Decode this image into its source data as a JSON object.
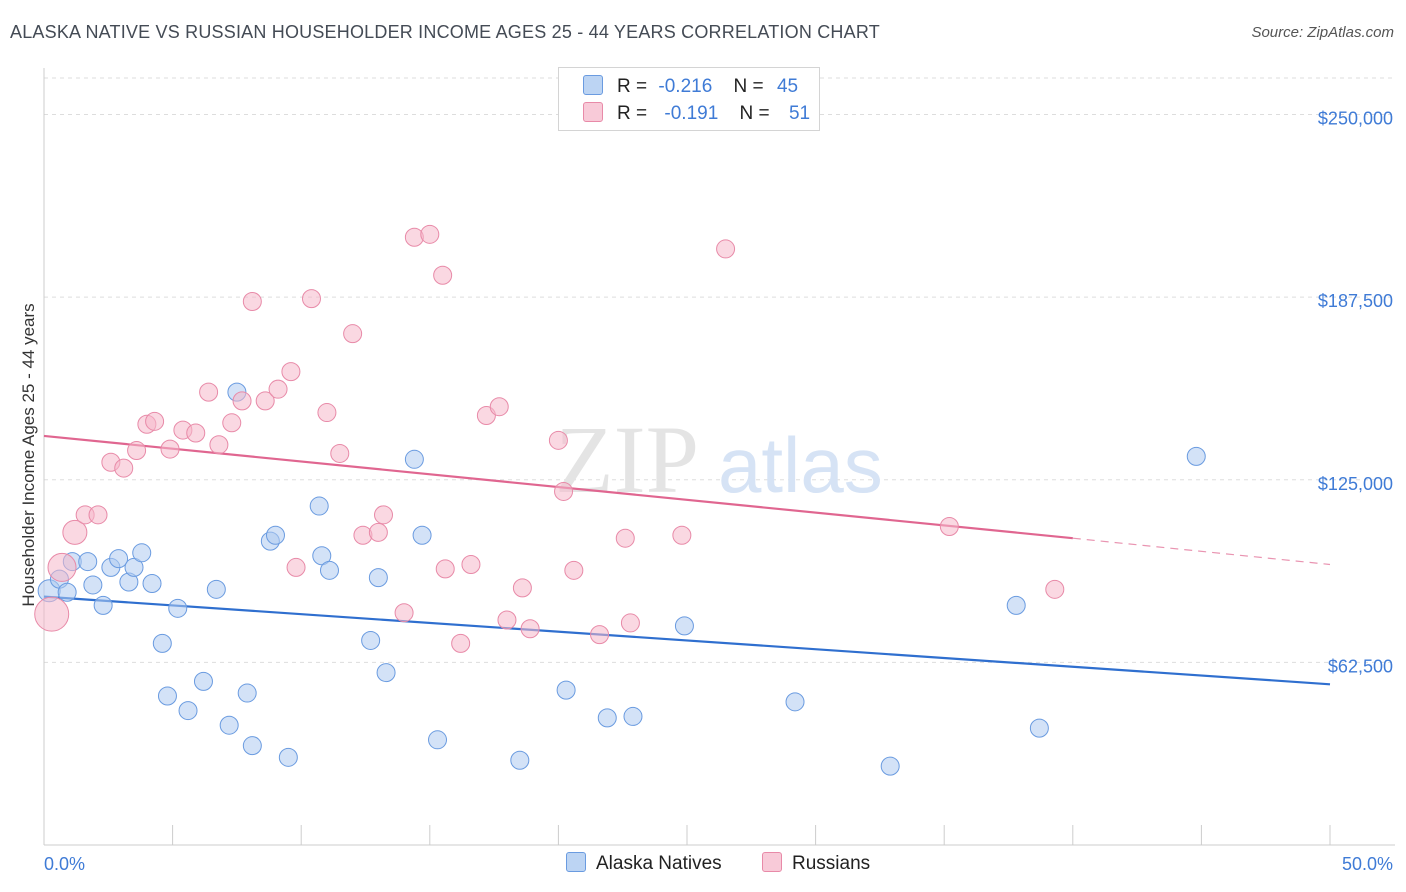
{
  "title": "ALASKA NATIVE VS RUSSIAN HOUSEHOLDER INCOME AGES 25 - 44 YEARS CORRELATION CHART",
  "source": "Source: ZipAtlas.com",
  "watermark": {
    "zip": "ZIP",
    "atlas": "atlas"
  },
  "legend_stats": [
    {
      "r_label": "R =",
      "r_value": "-0.216",
      "n_label": "N =",
      "n_value": "45",
      "color": "#aecbf0"
    },
    {
      "r_label": "R =",
      "r_value": "-0.191",
      "n_label": "N =",
      "n_value": "51",
      "color": "#f5b8cb"
    }
  ],
  "chart_data": {
    "type": "scatter",
    "title": "ALASKA NATIVE VS RUSSIAN HOUSEHOLDER INCOME AGES 25 - 44 YEARS CORRELATION CHART",
    "xlabel": "",
    "ylabel": "Householder Income Ages 25 - 44 years",
    "xlim": [
      0,
      50
    ],
    "ylim": [
      0,
      262500
    ],
    "x_tick_labels": [
      "0.0%",
      "50.0%"
    ],
    "y_ticks": [
      62500,
      125000,
      187500,
      250000
    ],
    "y_tick_labels": [
      "$62,500",
      "$125,000",
      "$187,500",
      "$250,000"
    ],
    "grid": true,
    "legend_position": "top-center",
    "series": [
      {
        "name": "Alaska Natives",
        "color": "#aecbf0",
        "stroke": "#6a9be0",
        "line_color": "#2f6fcf",
        "trend": {
          "x": [
            0,
            50
          ],
          "y": [
            85000,
            55000
          ]
        },
        "points": [
          {
            "x": 0.2,
            "y": 87000,
            "r": 11
          },
          {
            "x": 0.6,
            "y": 91000
          },
          {
            "x": 0.9,
            "y": 86500
          },
          {
            "x": 1.1,
            "y": 97000
          },
          {
            "x": 1.7,
            "y": 97000
          },
          {
            "x": 1.9,
            "y": 89000
          },
          {
            "x": 2.3,
            "y": 82000
          },
          {
            "x": 2.6,
            "y": 95000
          },
          {
            "x": 2.9,
            "y": 98000
          },
          {
            "x": 3.3,
            "y": 90000
          },
          {
            "x": 3.5,
            "y": 95000
          },
          {
            "x": 3.8,
            "y": 100000
          },
          {
            "x": 4.2,
            "y": 89500
          },
          {
            "x": 4.6,
            "y": 69000
          },
          {
            "x": 4.8,
            "y": 51000
          },
          {
            "x": 5.2,
            "y": 81000
          },
          {
            "x": 5.6,
            "y": 46000
          },
          {
            "x": 6.2,
            "y": 56000
          },
          {
            "x": 6.7,
            "y": 87500
          },
          {
            "x": 7.2,
            "y": 41000
          },
          {
            "x": 7.5,
            "y": 155000
          },
          {
            "x": 7.9,
            "y": 52000
          },
          {
            "x": 8.1,
            "y": 34000
          },
          {
            "x": 8.8,
            "y": 104000
          },
          {
            "x": 9.0,
            "y": 106000
          },
          {
            "x": 9.5,
            "y": 30000
          },
          {
            "x": 10.7,
            "y": 116000
          },
          {
            "x": 10.8,
            "y": 99000
          },
          {
            "x": 11.1,
            "y": 94000
          },
          {
            "x": 12.7,
            "y": 70000
          },
          {
            "x": 13.0,
            "y": 91500
          },
          {
            "x": 13.3,
            "y": 59000
          },
          {
            "x": 14.4,
            "y": 132000
          },
          {
            "x": 14.7,
            "y": 106000
          },
          {
            "x": 15.3,
            "y": 36000
          },
          {
            "x": 18.5,
            "y": 29000
          },
          {
            "x": 20.3,
            "y": 53000
          },
          {
            "x": 21.9,
            "y": 43500
          },
          {
            "x": 22.9,
            "y": 44000
          },
          {
            "x": 24.9,
            "y": 75000
          },
          {
            "x": 29.2,
            "y": 49000
          },
          {
            "x": 32.9,
            "y": 27000
          },
          {
            "x": 37.8,
            "y": 82000
          },
          {
            "x": 38.7,
            "y": 40000
          },
          {
            "x": 44.8,
            "y": 133000
          }
        ]
      },
      {
        "name": "Russians",
        "color": "#f5b8cb",
        "stroke": "#e88aa8",
        "line_color": "#e06690",
        "trend": {
          "x": [
            0,
            40
          ],
          "y": [
            140000,
            105000
          ]
        },
        "trend_dashed": {
          "x": [
            40,
            50
          ],
          "y": [
            105000,
            96000
          ]
        },
        "points": [
          {
            "x": 0.3,
            "y": 79000,
            "r": 17
          },
          {
            "x": 0.7,
            "y": 95000,
            "r": 14
          },
          {
            "x": 1.2,
            "y": 107000,
            "r": 12
          },
          {
            "x": 1.6,
            "y": 113000
          },
          {
            "x": 2.1,
            "y": 113000
          },
          {
            "x": 2.6,
            "y": 131000
          },
          {
            "x": 3.1,
            "y": 129000
          },
          {
            "x": 3.6,
            "y": 135000
          },
          {
            "x": 4.0,
            "y": 144000
          },
          {
            "x": 4.3,
            "y": 145000
          },
          {
            "x": 4.9,
            "y": 135500
          },
          {
            "x": 5.4,
            "y": 142000
          },
          {
            "x": 5.9,
            "y": 141000
          },
          {
            "x": 6.4,
            "y": 155000
          },
          {
            "x": 6.8,
            "y": 137000
          },
          {
            "x": 7.3,
            "y": 144500
          },
          {
            "x": 7.7,
            "y": 152000
          },
          {
            "x": 8.1,
            "y": 186000
          },
          {
            "x": 8.6,
            "y": 152000
          },
          {
            "x": 9.1,
            "y": 156000
          },
          {
            "x": 9.6,
            "y": 162000
          },
          {
            "x": 9.8,
            "y": 95000
          },
          {
            "x": 10.4,
            "y": 187000
          },
          {
            "x": 11.0,
            "y": 148000
          },
          {
            "x": 11.5,
            "y": 134000
          },
          {
            "x": 12.0,
            "y": 175000
          },
          {
            "x": 12.4,
            "y": 106000
          },
          {
            "x": 13.0,
            "y": 107000
          },
          {
            "x": 13.2,
            "y": 113000
          },
          {
            "x": 14.0,
            "y": 79500
          },
          {
            "x": 14.4,
            "y": 208000
          },
          {
            "x": 15.0,
            "y": 209000
          },
          {
            "x": 15.5,
            "y": 195000
          },
          {
            "x": 15.6,
            "y": 94500
          },
          {
            "x": 16.2,
            "y": 69000
          },
          {
            "x": 16.6,
            "y": 96000
          },
          {
            "x": 17.2,
            "y": 147000
          },
          {
            "x": 17.7,
            "y": 150000
          },
          {
            "x": 18.0,
            "y": 77000
          },
          {
            "x": 18.6,
            "y": 88000
          },
          {
            "x": 18.9,
            "y": 74000
          },
          {
            "x": 20.0,
            "y": 138500
          },
          {
            "x": 20.2,
            "y": 121000
          },
          {
            "x": 20.6,
            "y": 94000
          },
          {
            "x": 21.6,
            "y": 72000
          },
          {
            "x": 22.6,
            "y": 105000
          },
          {
            "x": 22.8,
            "y": 76000
          },
          {
            "x": 24.8,
            "y": 106000
          },
          {
            "x": 26.5,
            "y": 204000
          },
          {
            "x": 35.2,
            "y": 109000
          },
          {
            "x": 39.3,
            "y": 87500
          }
        ]
      }
    ]
  }
}
